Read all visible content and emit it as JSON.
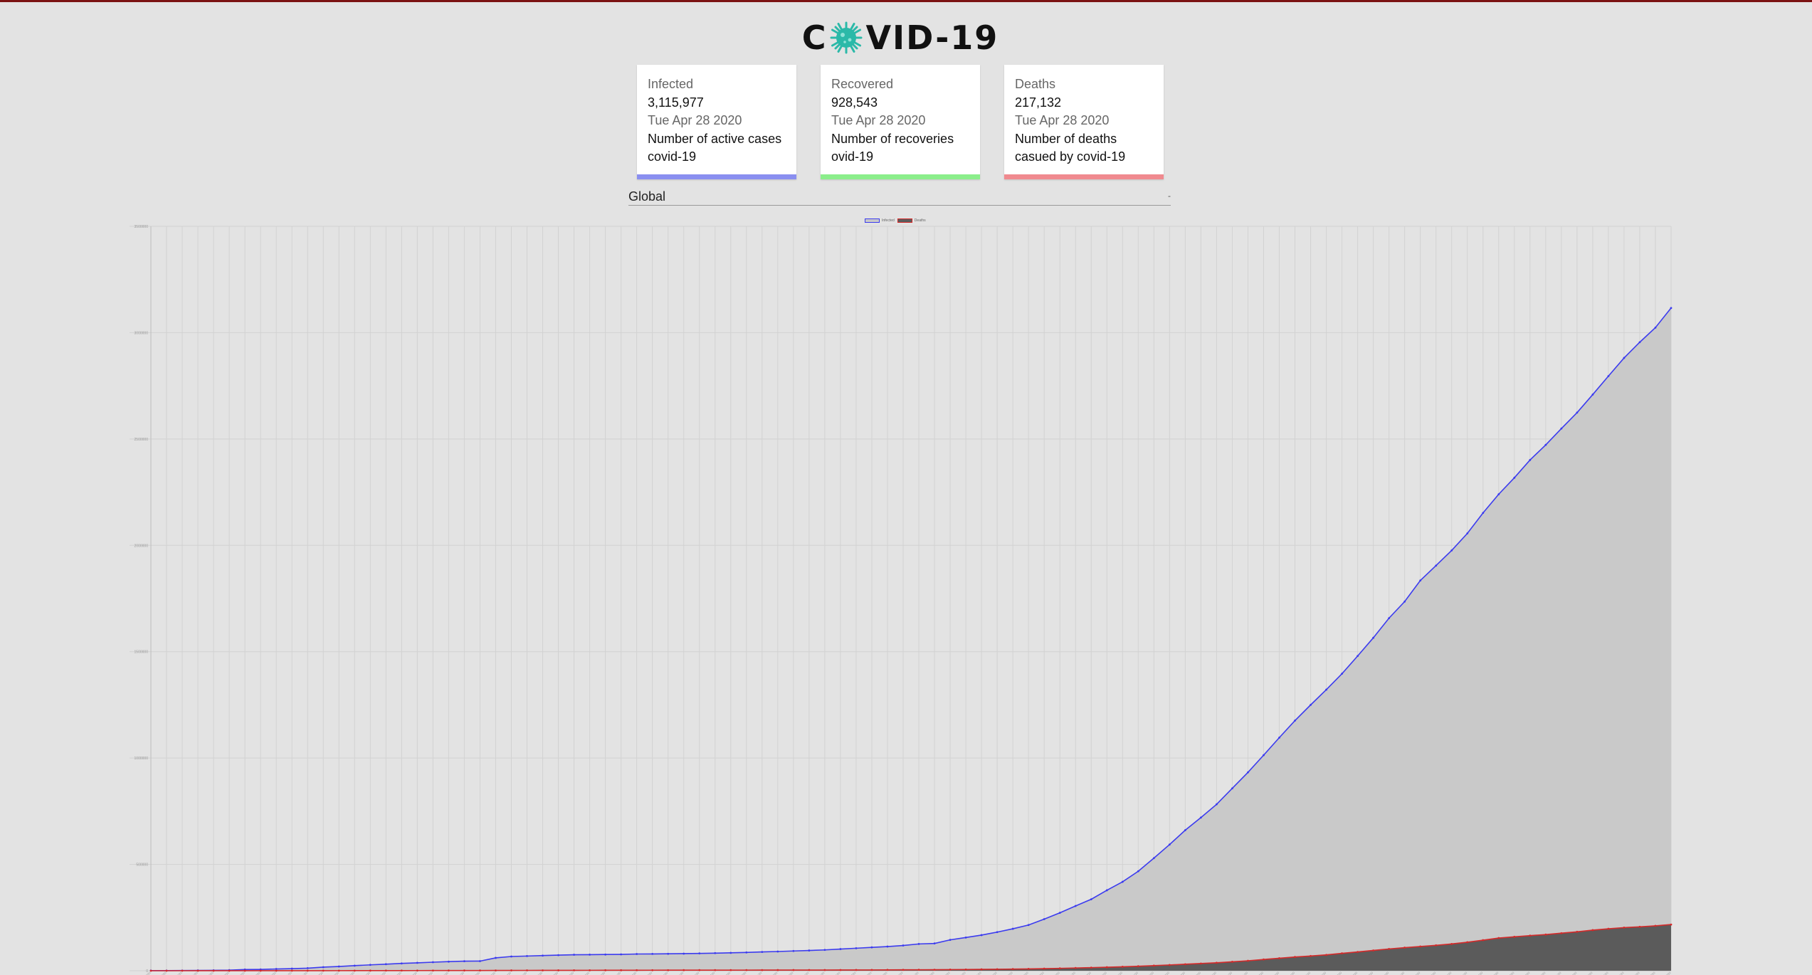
{
  "header": {
    "title_prefix": "C",
    "title_suffix": "VID-19",
    "logo_icon": "virus-icon",
    "accent_color": "#7b1212"
  },
  "cards": [
    {
      "label": "Infected",
      "value": "3,115,977",
      "date": "Tue Apr 28 2020",
      "description": "Number of active cases covid-19",
      "color": "#8a8ff0"
    },
    {
      "label": "Recovered",
      "value": "928,543",
      "date": "Tue Apr 28 2020",
      "description": "Number of recoveries ovid-19",
      "color": "#8bee8b"
    },
    {
      "label": "Deaths",
      "value": "217,132",
      "date": "Tue Apr 28 2020",
      "description": "Number of deaths casued by covid-19",
      "color": "#f08a8f"
    }
  ],
  "country_select": {
    "value": "Global",
    "arrow_icon": "dropdown-arrow-icon"
  },
  "chart_data": {
    "type": "area",
    "legend": [
      "Infected",
      "Deaths"
    ],
    "legend_position": "top-center",
    "grid": true,
    "x_start": "2020-01-22",
    "x_end": "2020-04-28",
    "ylim": [
      0,
      3500000
    ],
    "yticks": [
      "0",
      "500000",
      "1000000",
      "1500000",
      "2000000",
      "2500000",
      "3000000",
      "3500000"
    ],
    "series": [
      {
        "name": "Infected",
        "color": "#3b3bef",
        "fill": "#c9c9c9",
        "values": [
          555,
          654,
          941,
          1434,
          2118,
          2927,
          5578,
          6166,
          8234,
          9927,
          12038,
          16787,
          19881,
          23892,
          27636,
          30818,
          34392,
          37121,
          40151,
          42763,
          44803,
          45222,
          60370,
          66887,
          69032,
          71226,
          73260,
          75138,
          75641,
          76199,
          76843,
          78599,
          78985,
          79570,
          80415,
          81397,
          82756,
          84124,
          86013,
          88371,
          90309,
          92844,
          95124,
          97886,
          101800,
          105836,
          109835,
          113582,
          118582,
          125865,
          128343,
          145193,
          156097,
          167449,
          181531,
          197146,
          214910,
          242708,
          272166,
          304524,
          335955,
          378235,
          418045,
          467653,
          529591,
          593291,
          660706,
          720117,
          782365,
          857487,
          932605,
          1013466,
          1095917,
          1176060,
          1249754,
          1321481,
          1396476,
          1479804,
          1565278,
          1657526,
          1735650,
          1834721,
          1904838,
          1976191,
          2056054,
          2152437,
          2240190,
          2317759,
          2401378,
          2472259,
          2549123,
          2624083,
          2708885,
          2795729,
          2881140,
          2955033,
          3023722,
          3115977
        ]
      },
      {
        "name": "Deaths",
        "color": "#d42a2a",
        "fill": "#5b5b5b",
        "values": [
          17,
          18,
          26,
          42,
          56,
          82,
          131,
          133,
          171,
          213,
          259,
          362,
          426,
          492,
          564,
          634,
          719,
          806,
          906,
          1013,
          1113,
          1118,
          1371,
          1523,
          1666,
          1770,
          1868,
          2007,
          2122,
          2247,
          2251,
          2458,
          2469,
          2629,
          2708,
          2770,
          2814,
          2872,
          2941,
          2996,
          3085,
          3160,
          3254,
          3348,
          3460,
          3558,
          3802,
          3988,
          4262,
          4615,
          4720,
          5404,
          5819,
          6440,
          7126,
          7905,
          8733,
          9867,
          11299,
          12973,
          14651,
          16505,
          18625,
          21181,
          23970,
          27198,
          30652,
          33925,
          37582,
          42107,
          46809,
          52983,
          58787,
          64606,
          69374,
          74565,
          81865,
          88338,
          95455,
          102525,
          108503,
          114091,
          119482,
          125984,
          134177,
          143800,
          153821,
          159509,
          165064,
          169986,
          176583,
          183066,
          190858,
          197159,
          202846,
          206542,
          211167,
          217132
        ]
      }
    ]
  }
}
